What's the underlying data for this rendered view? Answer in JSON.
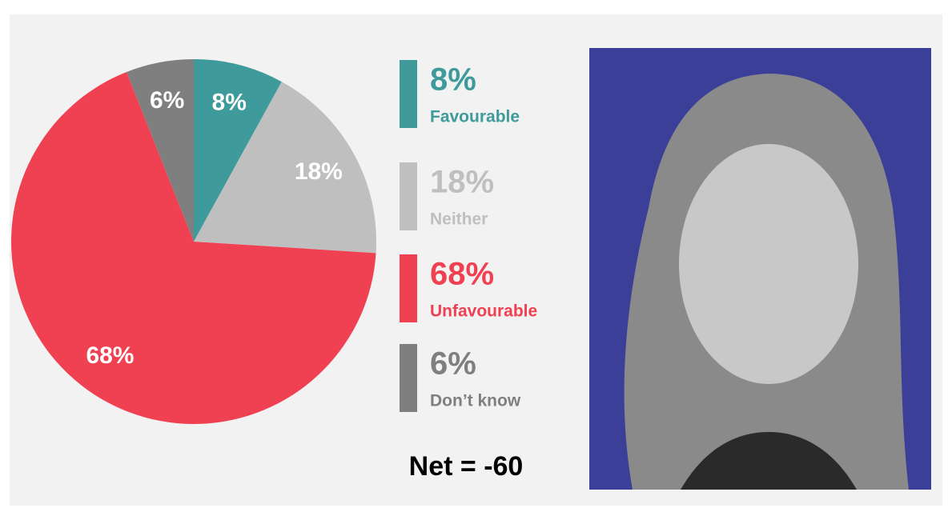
{
  "chart_data": {
    "type": "pie",
    "categories": [
      "Favourable",
      "Neither",
      "Unfavourable",
      "Don’t know"
    ],
    "values": [
      8,
      18,
      68,
      6
    ],
    "value_labels": [
      "8%",
      "18%",
      "68%",
      "6%"
    ],
    "colors": [
      "#3f9b9b",
      "#bfbfbf",
      "#f04152",
      "#7f7f7f"
    ],
    "annotation": "Net = -60"
  }
}
